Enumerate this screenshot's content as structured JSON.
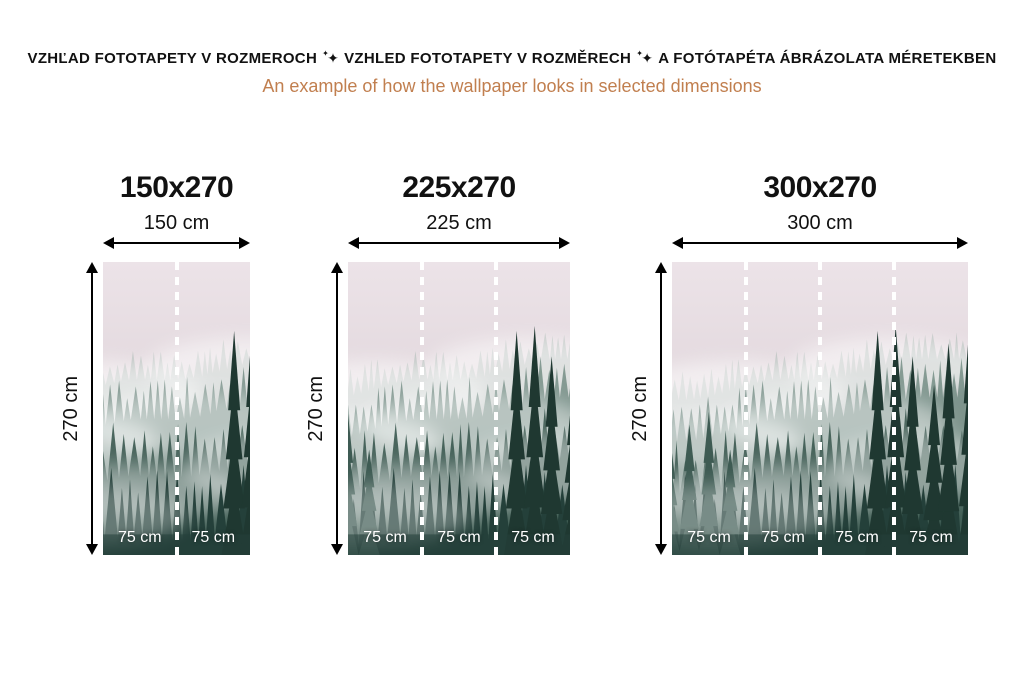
{
  "header": {
    "title_parts": [
      "VZHĽAD FOTOTAPETY V ROZMEROCH",
      "VZHLED FOTOTAPETY V ROZMĚRECH",
      "A FOTÓTAPÉTA ÁBRÁZOLATA MÉRETEKBEN"
    ],
    "separator": "✦",
    "subtitle": "An example of how the wallpaper looks in selected dimensions"
  },
  "variants": [
    {
      "label": "150x270",
      "width_label": "150 cm",
      "height_label": "270 cm",
      "width_cm": 150,
      "height_cm": 270,
      "panel_width_cm": 75,
      "panels": [
        "75 cm",
        "75 cm"
      ]
    },
    {
      "label": "225x270",
      "width_label": "225 cm",
      "height_label": "270 cm",
      "width_cm": 225,
      "height_cm": 270,
      "panel_width_cm": 75,
      "panels": [
        "75 cm",
        "75 cm",
        "75 cm"
      ]
    },
    {
      "label": "300x270",
      "width_label": "300 cm",
      "height_label": "270 cm",
      "width_cm": 300,
      "height_cm": 270,
      "panel_width_cm": 75,
      "panels": [
        "75 cm",
        "75 cm",
        "75 cm",
        "75 cm"
      ]
    }
  ],
  "colors": {
    "title_text": "#111111",
    "subtitle": "#c17f4f",
    "arrow": "#000000",
    "panel_divider": "#ffffff",
    "panel_label": "#ffffff"
  },
  "artwork": {
    "description": "misty-pine-forest-photo",
    "sky_top": "#ece3e8",
    "sky_mid": "#e2d8dd",
    "sky_bottom": "#d5d0d2",
    "layer_far": "#9aada6",
    "layer_mid": "#6c867e",
    "layer_near": "#3e5b53",
    "layer_front": "#24403a",
    "layer_tall": "#1f3831",
    "fog": "#ffffff"
  }
}
